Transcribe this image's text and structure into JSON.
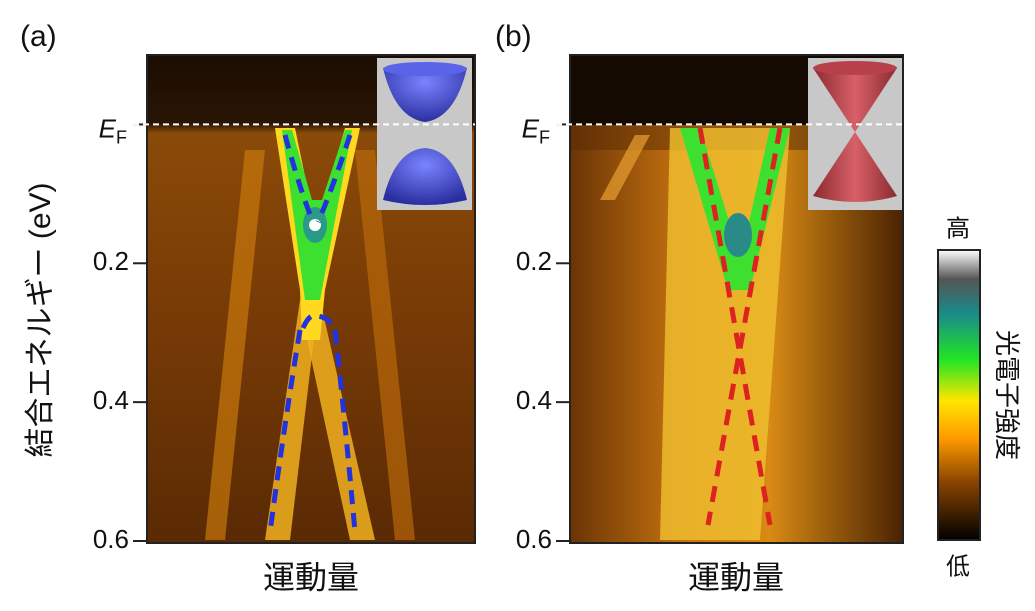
{
  "chart_data": [
    {
      "type": "arpes",
      "panel_label": "(a)",
      "x_label": "運動量",
      "y_label": "結合エネルギー (eV)",
      "ylim": [
        -0.1,
        0.6
      ],
      "yticks": [
        {
          "value": 0,
          "label": "EF"
        },
        0.2,
        0.4,
        0.6
      ],
      "fit_color": "#2233dd"
    },
    {
      "type": "arpes",
      "panel_label": "(b)",
      "x_label": "運動量",
      "ylim": [
        -0.1,
        0.6
      ],
      "yticks": [
        {
          "value": 0,
          "label": "EF"
        },
        0.2,
        0.4,
        0.6
      ],
      "fit_color": "#dd2222"
    }
  ],
  "colorbar": {
    "label": "光電子強度",
    "high": "高",
    "low": "低"
  }
}
